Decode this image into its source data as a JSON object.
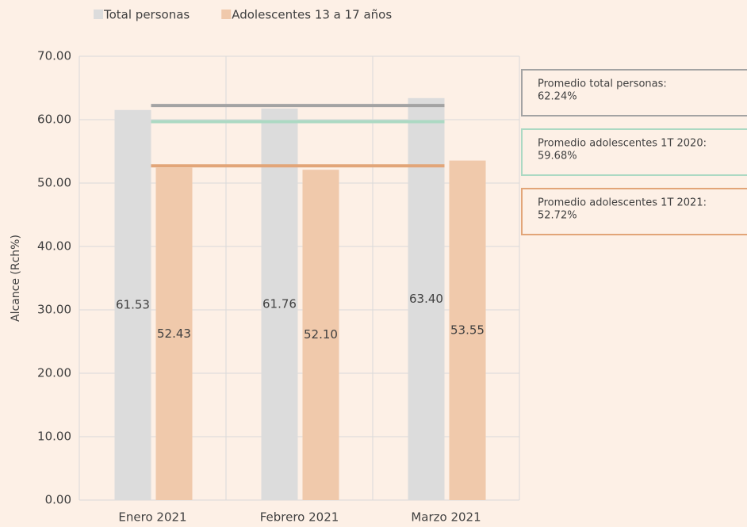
{
  "chart_data": {
    "type": "bar",
    "categories": [
      "Enero 2021",
      "Febrero 2021",
      "Marzo 2021"
    ],
    "series": [
      {
        "name": "Total personas",
        "color": "#dcdcdc",
        "values": [
          61.53,
          61.76,
          63.4
        ],
        "value_labels": [
          "61.53",
          "61.76",
          "63.40"
        ]
      },
      {
        "name": "Adolescentes 13 a 17 años",
        "color": "#f0c9ab",
        "values": [
          52.43,
          52.1,
          53.55
        ],
        "value_labels": [
          "52.43",
          "52.10",
          "53.55"
        ]
      }
    ],
    "ylabel": "Alcance (Rch%)",
    "ylim": [
      0,
      70
    ],
    "yticks": [
      {
        "value": 0,
        "label": "0.00"
      },
      {
        "value": 10,
        "label": "10.00"
      },
      {
        "value": 20,
        "label": "20.00"
      },
      {
        "value": 30,
        "label": "30.00"
      },
      {
        "value": 40,
        "label": "40.00"
      },
      {
        "value": 50,
        "label": "50.00"
      },
      {
        "value": 60,
        "label": "60.00"
      },
      {
        "value": 70,
        "label": "70.00"
      }
    ],
    "grid": true,
    "legend": "top",
    "reference_lines": [
      {
        "name": "Promedio total personas:",
        "value": 62.24,
        "value_label": "62.24%",
        "color": "#a3a3a3"
      },
      {
        "name": "Promedio adolescentes 1T 2020:",
        "value": 59.68,
        "value_label": "59.68%",
        "color": "#acd9c3"
      },
      {
        "name": "Promedio adolescentes 1T 2021:",
        "value": 52.72,
        "value_label": "52.72%",
        "color": "#e2a578"
      }
    ]
  }
}
